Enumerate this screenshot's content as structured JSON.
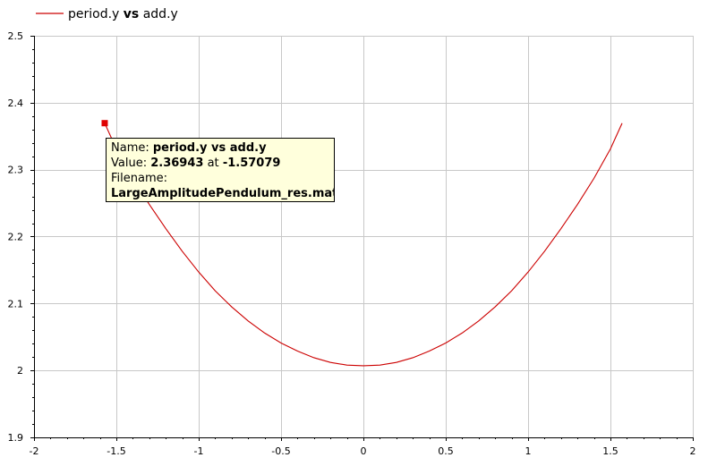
{
  "legend": {
    "name_prefix": "period.y",
    "name_bold": "vs",
    "name_suffix": "add.y"
  },
  "tooltip": {
    "name_label": "Name:",
    "name_value": "period.y vs add.y",
    "value_label": "Value:",
    "value_y": "2.36943",
    "value_at": "at",
    "value_x": "-1.57079",
    "filename_label": "Filename:",
    "filename_value": "LargeAmplitudePendulum_res.mat"
  },
  "colors": {
    "series": "#cc0000",
    "marker": "#e00000",
    "grid": "#c8c8c8",
    "tooltip_bg": "#ffffdc"
  },
  "chart_data": {
    "type": "line",
    "title": "",
    "xlabel": "",
    "ylabel": "",
    "xlim": [
      -2,
      2
    ],
    "ylim": [
      1.9,
      2.5
    ],
    "xticks": [
      -2,
      -1.5,
      -1,
      -0.5,
      0,
      0.5,
      1,
      1.5,
      2
    ],
    "yticks": [
      1.9,
      2,
      2.1,
      2.2,
      2.3,
      2.4,
      2.5
    ],
    "xtick_labels": [
      "-2",
      "-1.5",
      "-1",
      "-0.5",
      "0",
      "0.5",
      "1",
      "1.5",
      "2"
    ],
    "ytick_labels": [
      "1.9",
      "2",
      "2.1",
      "2.2",
      "2.3",
      "2.4",
      "2.5"
    ],
    "grid": true,
    "legend_position": "top-left",
    "series": [
      {
        "name": "period.y vs add.y",
        "x": [
          -1.5708,
          -1.5,
          -1.4,
          -1.3,
          -1.2,
          -1.1,
          -1.0,
          -0.9,
          -0.8,
          -0.7,
          -0.6,
          -0.5,
          -0.4,
          -0.3,
          -0.2,
          -0.1,
          0.0,
          0.1,
          0.2,
          0.3,
          0.4,
          0.5,
          0.6,
          0.7,
          0.8,
          0.9,
          1.0,
          1.1,
          1.2,
          1.3,
          1.4,
          1.5,
          1.5708
        ],
        "y": [
          2.3694,
          2.331,
          2.287,
          2.248,
          2.212,
          2.178,
          2.147,
          2.119,
          2.095,
          2.074,
          2.056,
          2.041,
          2.029,
          2.019,
          2.012,
          2.008,
          2.007,
          2.008,
          2.012,
          2.019,
          2.029,
          2.041,
          2.056,
          2.074,
          2.095,
          2.119,
          2.147,
          2.178,
          2.212,
          2.248,
          2.287,
          2.331,
          2.3694
        ]
      }
    ],
    "highlight_point": {
      "x": -1.57079,
      "y": 2.36943
    }
  }
}
